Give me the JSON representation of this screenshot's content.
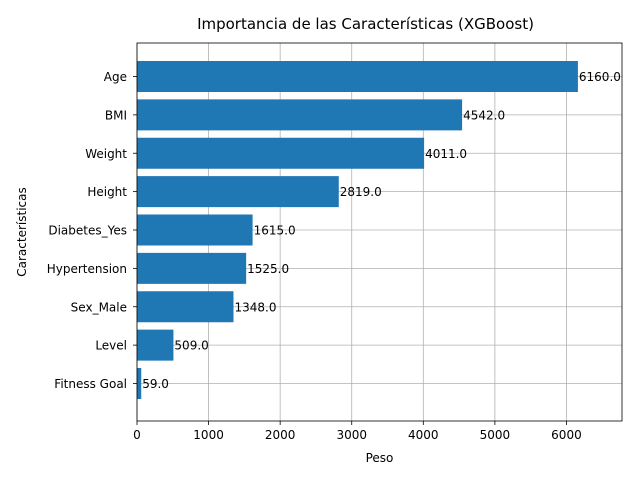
{
  "chart_data": {
    "type": "bar",
    "orientation": "horizontal",
    "title": "Importancia de las Características (XGBoost)",
    "xlabel": "Peso",
    "ylabel": "Características",
    "categories": [
      "Age",
      "BMI",
      "Weight",
      "Height",
      "Diabetes_Yes",
      "Hypertension",
      "Sex_Male",
      "Level",
      "Fitness Goal"
    ],
    "values": [
      6160,
      4542,
      4011,
      2819,
      1615,
      1525,
      1348,
      509,
      59
    ],
    "value_labels": [
      "6160.0",
      "4542.0",
      "4011.0",
      "2819.0",
      "1615.0",
      "1525.0",
      "1348.0",
      "509.0",
      "59.0"
    ],
    "xlim": [
      0,
      6776
    ],
    "xticks": [
      0,
      1000,
      2000,
      3000,
      4000,
      5000,
      6000
    ],
    "grid": true,
    "bar_color": "#1f77b4"
  }
}
